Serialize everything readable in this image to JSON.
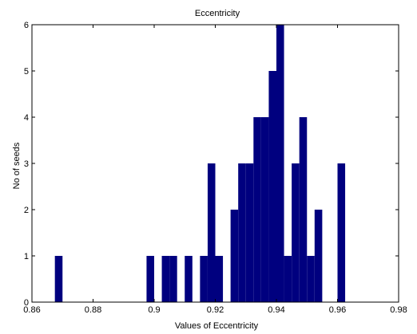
{
  "chart_data": {
    "type": "bar",
    "title": "Eccentricity",
    "xlabel": "Values of Eccentricity",
    "ylabel": "No of seeds",
    "xlim": [
      0.86,
      0.98
    ],
    "ylim": [
      0,
      6
    ],
    "grid": false,
    "bar_color": "#00007f",
    "x_ticks": [
      "0.86",
      "0.88",
      "0.9",
      "0.92",
      "0.94",
      "0.96",
      "0.98"
    ],
    "y_ticks": [
      "0",
      "1",
      "2",
      "3",
      "4",
      "5",
      "6"
    ],
    "bin_width": 0.0025,
    "bins": [
      {
        "x": 0.86875,
        "count": 1
      },
      {
        "x": 0.89875,
        "count": 1
      },
      {
        "x": 0.90375,
        "count": 1
      },
      {
        "x": 0.90625,
        "count": 1
      },
      {
        "x": 0.91125,
        "count": 1
      },
      {
        "x": 0.91625,
        "count": 1
      },
      {
        "x": 0.91875,
        "count": 3
      },
      {
        "x": 0.92125,
        "count": 1
      },
      {
        "x": 0.92625,
        "count": 2
      },
      {
        "x": 0.92875,
        "count": 3
      },
      {
        "x": 0.93125,
        "count": 3
      },
      {
        "x": 0.93375,
        "count": 4
      },
      {
        "x": 0.93625,
        "count": 4
      },
      {
        "x": 0.93875,
        "count": 5
      },
      {
        "x": 0.94125,
        "count": 6
      },
      {
        "x": 0.94375,
        "count": 1
      },
      {
        "x": 0.94625,
        "count": 3
      },
      {
        "x": 0.94875,
        "count": 4
      },
      {
        "x": 0.95125,
        "count": 1
      },
      {
        "x": 0.95375,
        "count": 2
      },
      {
        "x": 0.96125,
        "count": 3
      }
    ]
  }
}
